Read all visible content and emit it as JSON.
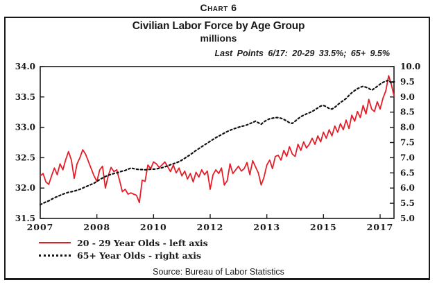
{
  "page": {
    "chart_label": "Chart 6"
  },
  "chart": {
    "title": "Civilian Labor Force by Age Group",
    "subtitle": "millions",
    "annotation": "Last Points 6/17: 20-29 33.5%; 65+ 9.5%",
    "source": "Source: Bureau of Labor Statistics",
    "colors": {
      "series_red": "#e41e28",
      "series_black": "#111111",
      "frame": "#1a1a1a"
    },
    "legend": [
      {
        "label": "20 - 29 Year Olds - left axis",
        "style": "solid",
        "color": "#e41e28"
      },
      {
        "label": "65+ Year Olds - right axis",
        "style": "dotted",
        "color": "#111111"
      }
    ]
  },
  "chart_data": {
    "type": "line",
    "title": "Civilian Labor Force by Age Group",
    "subtitle": "millions",
    "x_start": "2007-01",
    "x_end": "2017-06",
    "frequency": "monthly",
    "x_tick_labels": [
      "2007",
      "2008",
      "2010",
      "2012",
      "2013",
      "2015",
      "2017"
    ],
    "x_span_years": 10,
    "grid": false,
    "legend_position": "bottom-left",
    "left_axis": {
      "min": 31.5,
      "max": 34.0,
      "step": 0.5,
      "labels": [
        "34.0",
        "33.5",
        "33.0",
        "32.5",
        "32.0",
        "31.5"
      ]
    },
    "right_axis": {
      "min": 5.0,
      "max": 10.0,
      "step": 0.5,
      "labels": [
        "10.0",
        "9.5",
        "9.0",
        "8.5",
        "8.0",
        "7.5",
        "7.0",
        "6.5",
        "6.0",
        "5.5",
        "5.0"
      ]
    },
    "last_points": {
      "date": "6/17",
      "20-29": 33.5,
      "65+": 9.5
    },
    "series": [
      {
        "name": "20 - 29 Year Olds",
        "axis": "left",
        "color": "#e41e28",
        "style": "solid",
        "values": [
          32.2,
          32.24,
          32.1,
          32.06,
          32.2,
          32.33,
          32.22,
          32.4,
          32.3,
          32.47,
          32.6,
          32.46,
          32.16,
          32.4,
          32.5,
          32.63,
          32.56,
          32.44,
          32.32,
          32.2,
          32.11,
          32.3,
          32.36,
          32.0,
          32.2,
          32.34,
          32.27,
          32.3,
          32.13,
          31.94,
          31.98,
          31.9,
          31.92,
          31.9,
          31.88,
          31.76,
          32.13,
          32.11,
          32.38,
          32.32,
          32.43,
          32.4,
          32.34,
          32.38,
          32.43,
          32.35,
          32.27,
          32.38,
          32.25,
          32.33,
          32.2,
          32.28,
          32.15,
          32.24,
          32.1,
          32.26,
          32.18,
          32.3,
          32.22,
          32.28,
          31.98,
          32.22,
          32.3,
          32.24,
          32.33,
          32.05,
          32.12,
          32.4,
          32.24,
          32.3,
          32.36,
          32.28,
          32.32,
          32.42,
          32.22,
          32.45,
          32.35,
          32.25,
          32.05,
          32.18,
          32.38,
          32.46,
          32.32,
          32.52,
          32.54,
          32.46,
          32.62,
          32.52,
          32.68,
          32.56,
          32.52,
          32.72,
          32.62,
          32.76,
          32.66,
          32.72,
          32.82,
          32.72,
          32.86,
          32.76,
          32.92,
          32.82,
          32.96,
          32.86,
          33.02,
          32.92,
          33.06,
          32.96,
          33.12,
          32.98,
          33.2,
          33.1,
          33.26,
          33.16,
          33.36,
          33.22,
          33.46,
          33.3,
          33.26,
          33.42,
          33.3,
          33.48,
          33.6,
          33.85,
          33.7,
          33.5
        ]
      },
      {
        "name": "65+ Year Olds",
        "axis": "right",
        "color": "#111111",
        "style": "dotted",
        "values": [
          5.45,
          5.5,
          5.54,
          5.58,
          5.63,
          5.68,
          5.72,
          5.76,
          5.8,
          5.83,
          5.86,
          5.88,
          5.9,
          5.93,
          5.96,
          6.0,
          6.04,
          6.08,
          6.12,
          6.16,
          6.22,
          6.28,
          6.33,
          6.38,
          6.42,
          6.45,
          6.48,
          6.5,
          6.53,
          6.56,
          6.58,
          6.62,
          6.66,
          6.64,
          6.62,
          6.61,
          6.61,
          6.6,
          6.61,
          6.62,
          6.62,
          6.63,
          6.65,
          6.67,
          6.7,
          6.73,
          6.77,
          6.8,
          6.83,
          6.87,
          6.92,
          6.98,
          7.04,
          7.1,
          7.17,
          7.24,
          7.3,
          7.36,
          7.42,
          7.48,
          7.54,
          7.6,
          7.66,
          7.71,
          7.76,
          7.81,
          7.86,
          7.9,
          7.94,
          7.97,
          8.0,
          8.03,
          8.05,
          8.08,
          8.12,
          8.16,
          8.2,
          8.15,
          8.1,
          8.18,
          8.24,
          8.28,
          8.3,
          8.32,
          8.32,
          8.3,
          8.26,
          8.21,
          8.15,
          8.13,
          8.2,
          8.28,
          8.35,
          8.4,
          8.44,
          8.48,
          8.52,
          8.58,
          8.64,
          8.7,
          8.72,
          8.68,
          8.62,
          8.6,
          8.66,
          8.74,
          8.82,
          8.88,
          8.95,
          9.05,
          9.14,
          9.21,
          9.27,
          9.32,
          9.35,
          9.32,
          9.28,
          9.22,
          9.28,
          9.35,
          9.42,
          9.48,
          9.52,
          9.55,
          9.45,
          9.5
        ]
      }
    ]
  }
}
